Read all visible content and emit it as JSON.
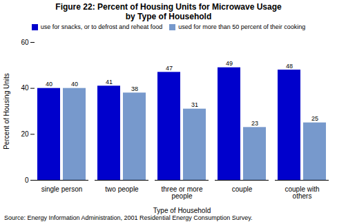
{
  "chart_data": {
    "type": "bar",
    "title": "Figure 22:  Percent of Housing Units for Microwave Usage\nby Type of Household",
    "categories": [
      "single person",
      "two people",
      "three or more\npeople",
      "couple",
      "couple with\nothers"
    ],
    "series": [
      {
        "name": "use for snacks, or to defrost and reheat food",
        "color": "#0000CC",
        "values": [
          40,
          41,
          47,
          49,
          48
        ]
      },
      {
        "name": "used for more than 50 percent of their cooking",
        "color": "#7799CC",
        "values": [
          40,
          38,
          31,
          23,
          25
        ]
      }
    ],
    "ylabel": "Percent of Housing Units",
    "xlabel": "Type of Household",
    "ylim": [
      0,
      60
    ],
    "yticks": [
      0,
      20,
      40,
      60
    ],
    "source": "Source:  Energy Information Administration, 2001 Residential Energy Consumption Survey.",
    "data_labels": true,
    "legend": "top",
    "grid": false
  }
}
